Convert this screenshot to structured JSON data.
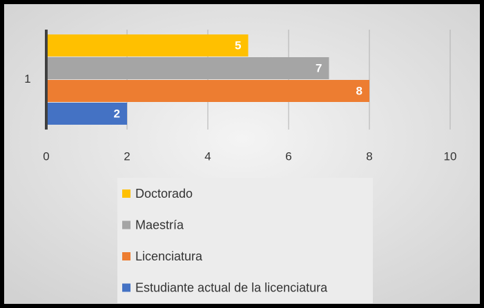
{
  "chart_data": {
    "type": "bar",
    "orientation": "horizontal",
    "categories": [
      "1"
    ],
    "series": [
      {
        "name": "Doctorado",
        "color": "#FFC000",
        "values": [
          5
        ]
      },
      {
        "name": "Maestría",
        "color": "#A5A5A5",
        "values": [
          7
        ]
      },
      {
        "name": "Licenciatura",
        "color": "#ED7D31",
        "values": [
          8
        ]
      },
      {
        "name": "Estudiante actual de la licenciatura",
        "color": "#4472C4",
        "values": [
          2
        ]
      }
    ],
    "xlim": [
      0,
      10
    ],
    "xticks": [
      0,
      2,
      4,
      6,
      8,
      10
    ],
    "grid": true,
    "legend": "bottom"
  }
}
